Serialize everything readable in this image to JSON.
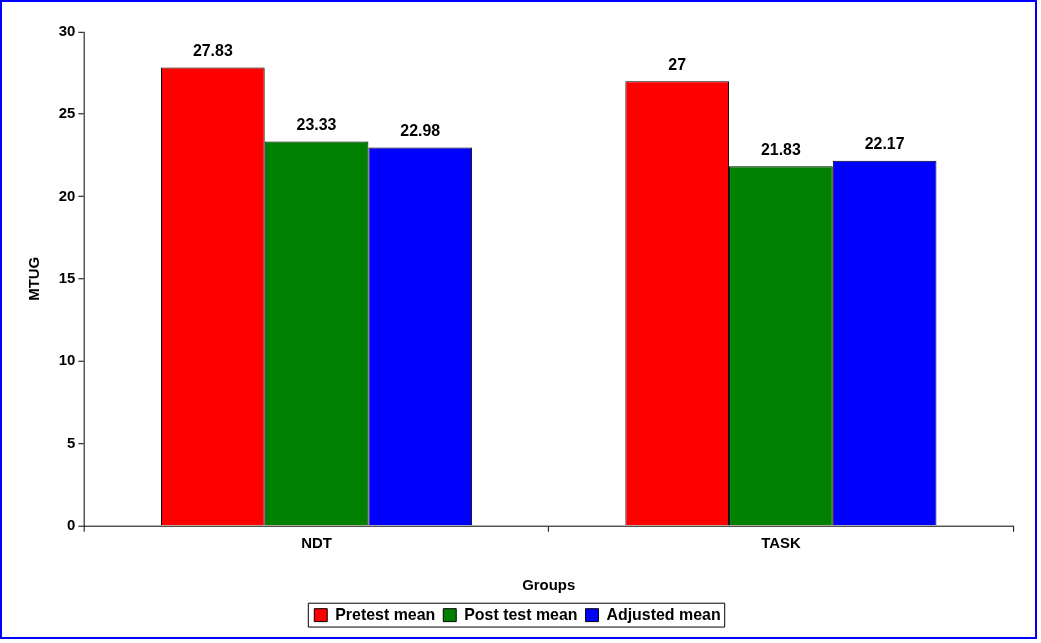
{
  "chart_data": {
    "type": "bar",
    "xlabel": "Groups",
    "ylabel": "MTUG",
    "categories": [
      "NDT",
      "TASK"
    ],
    "series": [
      {
        "name": "Pretest mean",
        "color": "#ff0000",
        "values": [
          27.83,
          27
        ]
      },
      {
        "name": "Post test mean",
        "color": "#008000",
        "values": [
          23.33,
          21.83
        ]
      },
      {
        "name": "Adjusted mean",
        "color": "#0000ff",
        "values": [
          22.98,
          22.17
        ]
      }
    ],
    "ylim": [
      0,
      30
    ],
    "yticks": [
      0,
      5,
      10,
      15,
      20,
      25,
      30
    ],
    "grid": false,
    "legend": "bottom",
    "data_labels": true
  }
}
